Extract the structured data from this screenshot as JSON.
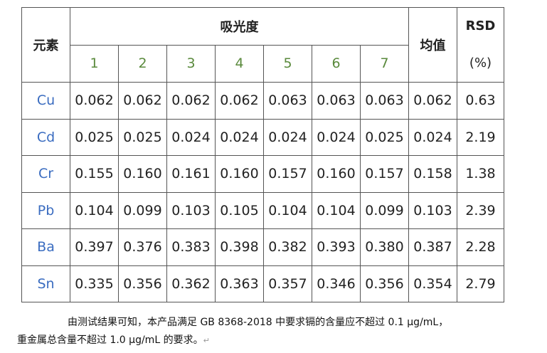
{
  "table": {
    "element_header": "元素",
    "absorbance_header": "吸光度",
    "mean_header": "均值",
    "rsd_header_line1": "RSD",
    "rsd_header_line2": "(%)",
    "measurement_numbers": [
      "1",
      "2",
      "3",
      "4",
      "5",
      "6",
      "7"
    ],
    "rows": [
      {
        "element": "Cu",
        "values": [
          "0.062",
          "0.062",
          "0.062",
          "0.062",
          "0.063",
          "0.063",
          "0.063"
        ],
        "mean": "0.062",
        "rsd": "0.63"
      },
      {
        "element": "Cd",
        "values": [
          "0.025",
          "0.025",
          "0.024",
          "0.024",
          "0.024",
          "0.024",
          "0.025"
        ],
        "mean": "0.024",
        "rsd": "2.19"
      },
      {
        "element": "Cr",
        "values": [
          "0.155",
          "0.160",
          "0.161",
          "0.160",
          "0.157",
          "0.160",
          "0.157"
        ],
        "mean": "0.158",
        "rsd": "1.38"
      },
      {
        "element": "Pb",
        "values": [
          "0.104",
          "0.099",
          "0.103",
          "0.105",
          "0.104",
          "0.104",
          "0.099"
        ],
        "mean": "0.103",
        "rsd": "2.39"
      },
      {
        "element": "Ba",
        "values": [
          "0.397",
          "0.376",
          "0.383",
          "0.398",
          "0.382",
          "0.393",
          "0.380"
        ],
        "mean": "0.387",
        "rsd": "2.28"
      },
      {
        "element": "Sn",
        "values": [
          "0.335",
          "0.356",
          "0.362",
          "0.363",
          "0.357",
          "0.346",
          "0.356"
        ],
        "mean": "0.354",
        "rsd": "2.79"
      }
    ]
  },
  "paragraph": {
    "line1": "由测试结果可知，本产品满足 GB 8368-2018 中要求镉的含量应不超过 0.1 μg/mL，",
    "line2": "重金属总含量不超过 1.0  μg/mL 的要求。",
    "paragraph_mark": "↵"
  }
}
